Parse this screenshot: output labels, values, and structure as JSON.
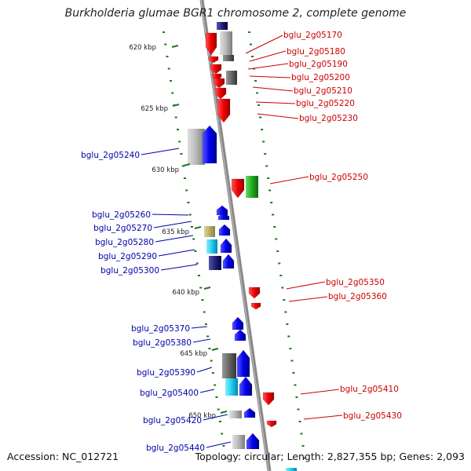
{
  "title": "Burkholderia glumae BGR1 chromosome 2, complete genome",
  "footer": {
    "accession": "Accession: NC_012721",
    "summary": "Topology: circular; Length: 2,827,355 bp; Genes: 2,093"
  },
  "colors": {
    "backbone": "#888888",
    "forward_red": "#ee0000",
    "reverse_blue": "#0000ee",
    "tick_green": "#1a7a1a",
    "label_red": "#cc0000",
    "label_blue": "#0000aa"
  },
  "kbp_ticks": [
    "620 kbp",
    "625 kbp",
    "630 kbp",
    "635 kbp",
    "640 kbp",
    "645 kbp",
    "650 kbp"
  ],
  "genes_right": [
    {
      "id": "bglu_2g05170"
    },
    {
      "id": "bglu_2g05180"
    },
    {
      "id": "bglu_2g05190"
    },
    {
      "id": "bglu_2g05200"
    },
    {
      "id": "bglu_2g05210"
    },
    {
      "id": "bglu_2g05220"
    },
    {
      "id": "bglu_2g05230"
    },
    {
      "id": "bglu_2g05250"
    },
    {
      "id": "bglu_2g05350"
    },
    {
      "id": "bglu_2g05360"
    },
    {
      "id": "bglu_2g05410"
    },
    {
      "id": "bglu_2g05430"
    }
  ],
  "genes_left": [
    {
      "id": "bglu_2g05240"
    },
    {
      "id": "bglu_2g05260"
    },
    {
      "id": "bglu_2g05270"
    },
    {
      "id": "bglu_2g05280"
    },
    {
      "id": "bglu_2g05290"
    },
    {
      "id": "bglu_2g05300"
    },
    {
      "id": "bglu_2g05370"
    },
    {
      "id": "bglu_2g05380"
    },
    {
      "id": "bglu_2g05390"
    },
    {
      "id": "bglu_2g05400"
    },
    {
      "id": "bglu_2g05420"
    },
    {
      "id": "bglu_2g05440"
    }
  ]
}
